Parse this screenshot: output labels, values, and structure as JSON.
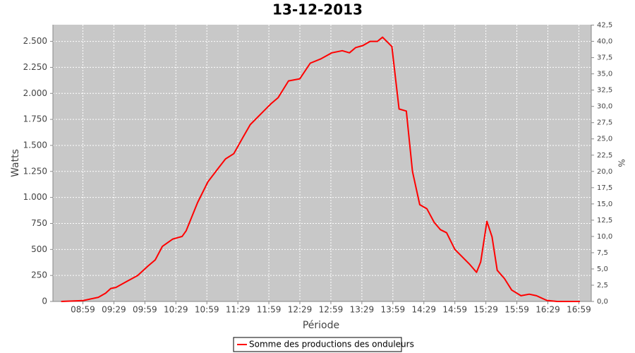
{
  "chart_data": {
    "type": "line",
    "title": "13-12-2013",
    "x_label": "Période",
    "y_label": "Watts",
    "y2_label": "%",
    "xlim": [
      "08:30",
      "17:11"
    ],
    "xticks": [
      "08:59",
      "09:29",
      "09:59",
      "10:29",
      "10:59",
      "11:29",
      "11:59",
      "12:29",
      "12:59",
      "13:29",
      "13:59",
      "14:29",
      "14:59",
      "15:29",
      "15:59",
      "16:29",
      "16:59"
    ],
    "ylim": [
      0,
      2660
    ],
    "yticks": [
      0,
      250,
      500,
      750,
      {
        "value": 1000,
        "label": "1.000"
      },
      {
        "value": 1250,
        "label": "1.250"
      },
      {
        "value": 1500,
        "label": "1.500"
      },
      {
        "value": 1750,
        "label": "1.750"
      },
      {
        "value": 2000,
        "label": "2.000"
      },
      {
        "value": 2250,
        "label": "2.250"
      },
      {
        "value": 2500,
        "label": "2.500"
      }
    ],
    "y2lim": [
      0,
      42.56
    ],
    "y2ticks": [
      {
        "value": 0,
        "label": "0,0"
      },
      {
        "value": 2.5,
        "label": "2,5"
      },
      {
        "value": 5,
        "label": "5,0"
      },
      {
        "value": 7.5,
        "label": "7,5"
      },
      {
        "value": 10,
        "label": "10,0"
      },
      {
        "value": 12.5,
        "label": "12,5"
      },
      {
        "value": 15,
        "label": "15,0"
      },
      {
        "value": 17.5,
        "label": "17,5"
      },
      {
        "value": 20,
        "label": "20,0"
      },
      {
        "value": 22.5,
        "label": "22,5"
      },
      {
        "value": 25,
        "label": "25,0"
      },
      {
        "value": 27.5,
        "label": "27,5"
      },
      {
        "value": 30,
        "label": "30,0"
      },
      {
        "value": 32.5,
        "label": "32,5"
      },
      {
        "value": 35,
        "label": "35,0"
      },
      {
        "value": 37.5,
        "label": "37,5"
      },
      {
        "value": 40,
        "label": "40,0"
      },
      {
        "value": 42.5,
        "label": "42,5"
      }
    ],
    "grid": true,
    "legend": "bottom",
    "x": [
      "08:38",
      "08:59",
      "09:14",
      "09:21",
      "09:26",
      "09:31",
      "09:41",
      "09:52",
      "10:02",
      "10:09",
      "10:16",
      "10:26",
      "10:35",
      "10:39",
      "10:50",
      "11:00",
      "11:10",
      "11:17",
      "11:25",
      "11:34",
      "11:41",
      "11:51",
      "12:01",
      "12:08",
      "12:18",
      "12:29",
      "12:39",
      "12:49",
      "13:00",
      "13:10",
      "13:17",
      "13:23",
      "13:30",
      "13:37",
      "13:44",
      "13:49",
      "13:58",
      "14:05",
      "14:12",
      "14:18",
      "14:25",
      "14:32",
      "14:39",
      "14:45",
      "14:51",
      "14:59",
      "15:06",
      "15:13",
      "15:20",
      "15:24",
      "15:30",
      "15:35",
      "15:40",
      "15:47",
      "15:54",
      "16:03",
      "16:11",
      "16:18",
      "16:28",
      "16:38",
      "17:00"
    ],
    "series": [
      {
        "name": "Somme des productions des onduleurs",
        "color": "#ff0000",
        "values": [
          0,
          8,
          40,
          80,
          125,
          135,
          190,
          250,
          340,
          400,
          530,
          600,
          625,
          680,
          950,
          1150,
          1280,
          1370,
          1420,
          1580,
          1700,
          1800,
          1900,
          1960,
          2120,
          2140,
          2290,
          2330,
          2390,
          2410,
          2390,
          2440,
          2460,
          2500,
          2500,
          2540,
          2450,
          1850,
          1830,
          1250,
          930,
          890,
          760,
          690,
          660,
          500,
          430,
          360,
          280,
          380,
          770,
          620,
          300,
          220,
          110,
          55,
          70,
          55,
          10,
          0,
          0
        ]
      }
    ]
  }
}
